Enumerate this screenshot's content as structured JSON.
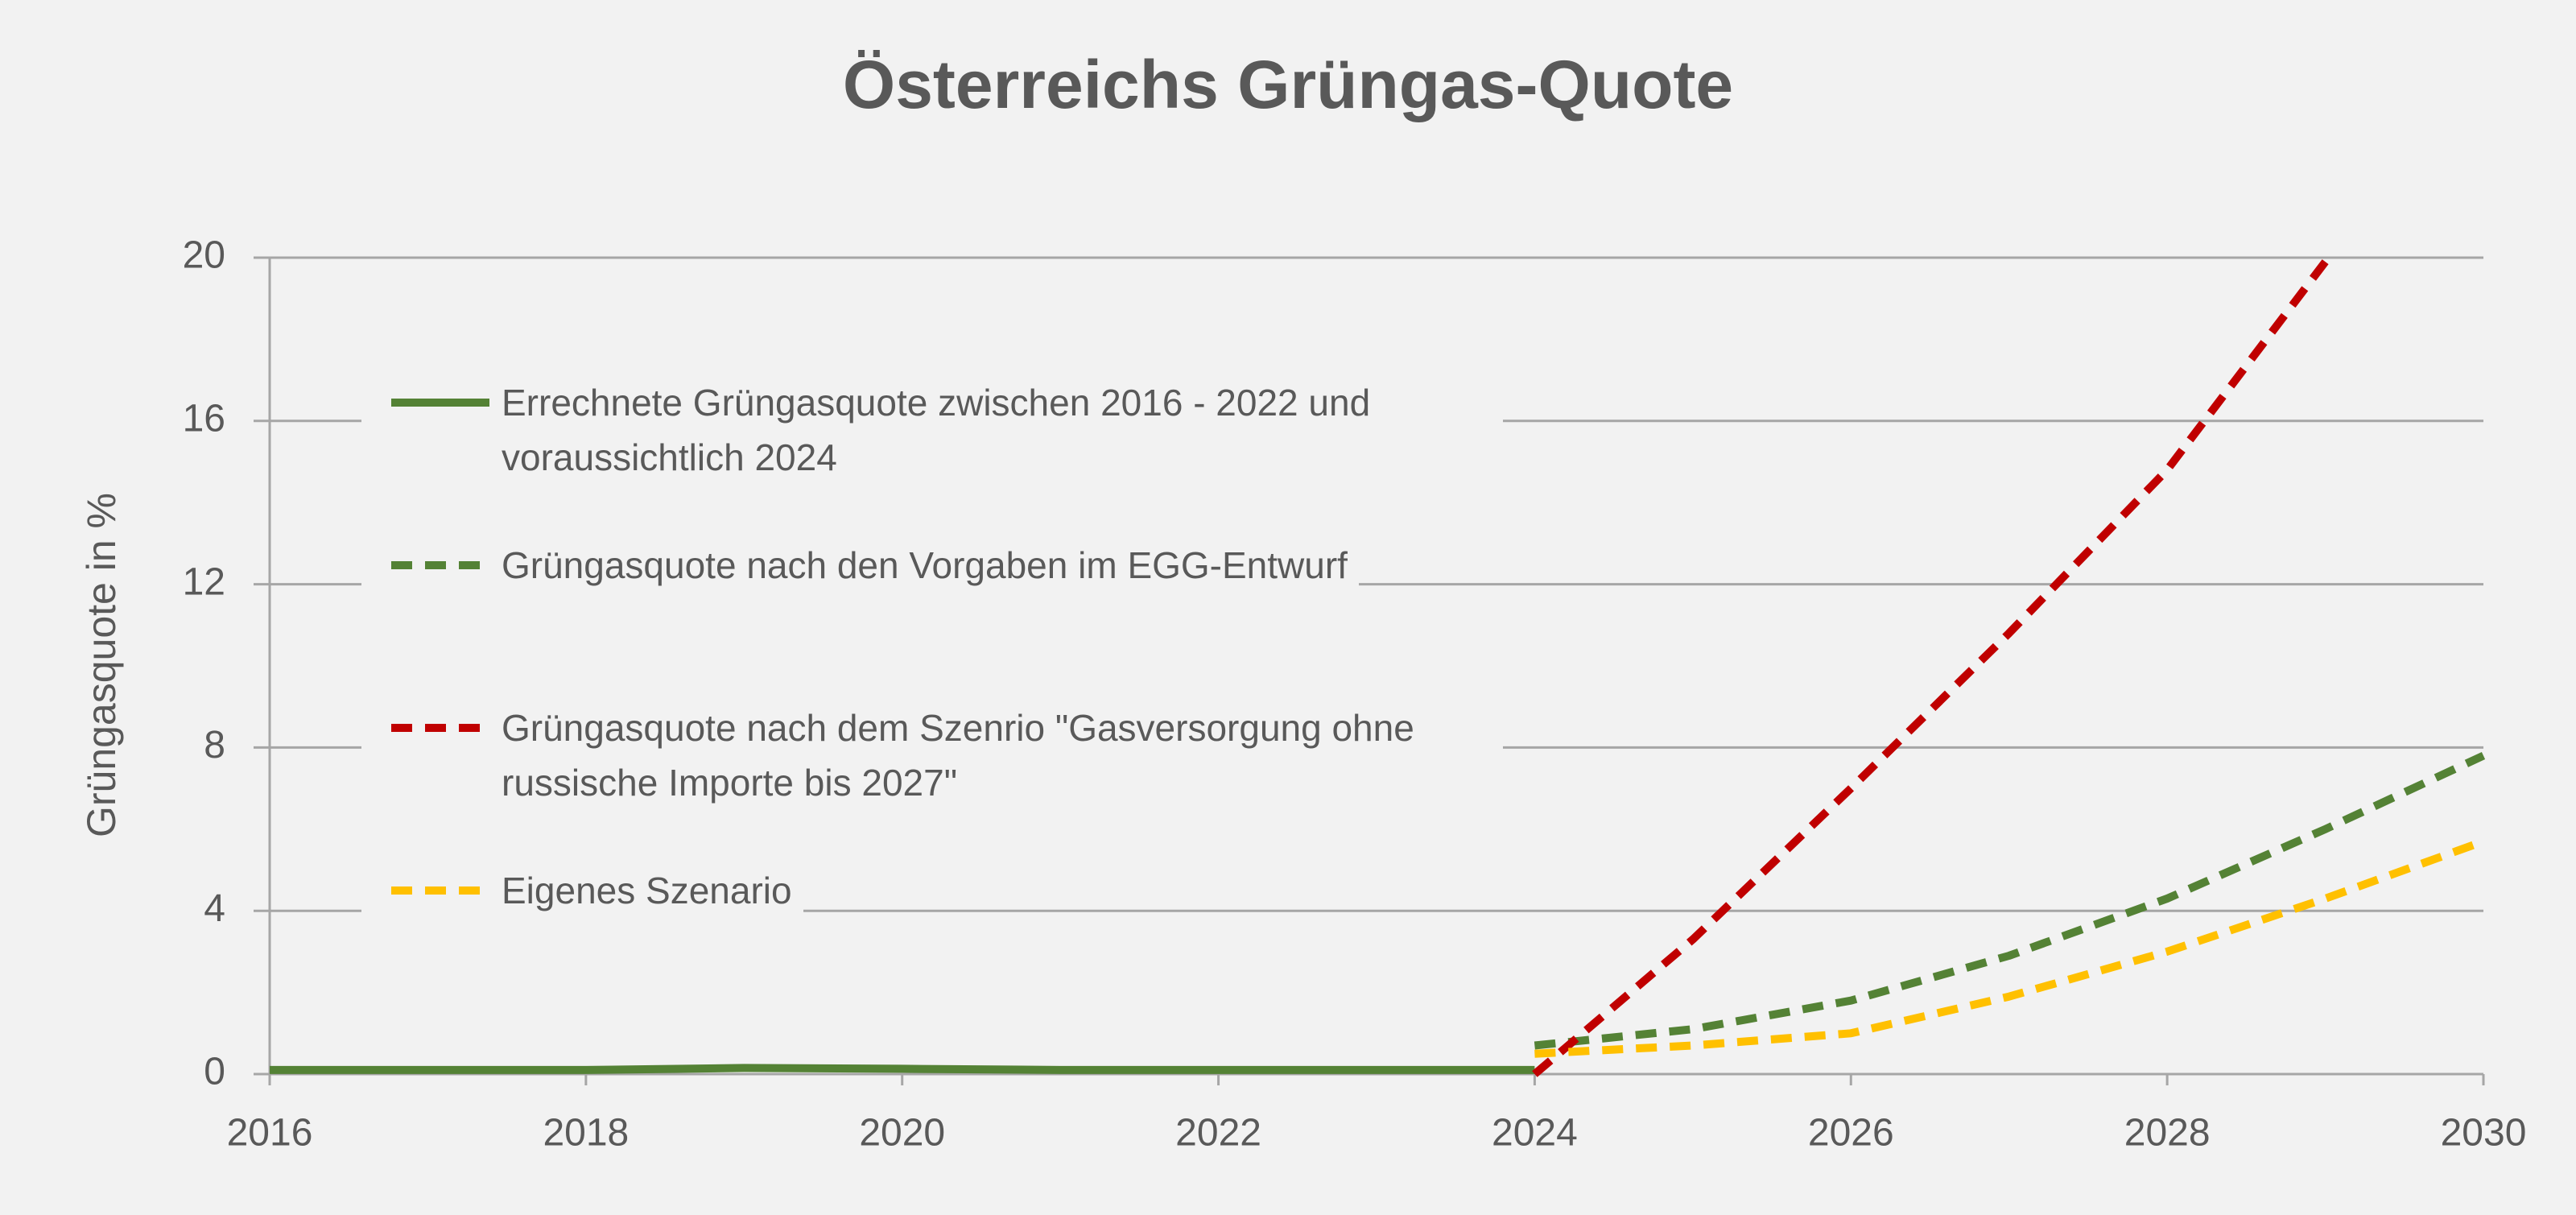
{
  "chart_data": {
    "type": "line",
    "title": "Österreichs Grüngas-Quote",
    "y_label": "Grüngasquote in %",
    "x": [
      2016,
      2017,
      2018,
      2019,
      2020,
      2021,
      2022,
      2023,
      2024,
      2025,
      2026,
      2027,
      2028,
      2029,
      2030
    ],
    "xlim": [
      2016,
      2030
    ],
    "xticks": [
      2016,
      2018,
      2020,
      2022,
      2024,
      2026,
      2028,
      2030
    ],
    "ylim": [
      0,
      20
    ],
    "yticks": [
      0,
      4,
      8,
      12,
      16,
      20
    ],
    "grid": true,
    "series": [
      {
        "name": "Errechnete Grüngasquote zwischen 2016 - 2022 und voraussichtlich 2024",
        "color": "#548235",
        "dashed": false,
        "values": [
          0.1,
          0.1,
          0.1,
          0.15,
          0.13,
          0.1,
          0.1,
          0.1,
          0.1,
          null,
          null,
          null,
          null,
          null,
          null
        ]
      },
      {
        "name": "Grüngasquote nach den Vorgaben im EGG-Entwurf",
        "color": "#548235",
        "dashed": true,
        "values": [
          null,
          null,
          null,
          null,
          null,
          null,
          null,
          null,
          0.7,
          1.1,
          1.8,
          2.9,
          4.3,
          6.0,
          7.8
        ]
      },
      {
        "name": "Grüngasquote nach dem Szenrio \"Gasversorgung ohne russische Importe bis 2027\"",
        "color": "#c00000",
        "dashed": true,
        "values": [
          null,
          null,
          null,
          null,
          null,
          null,
          null,
          null,
          0,
          3.3,
          7.0,
          10.8,
          14.8,
          19.9,
          null
        ]
      },
      {
        "name": "Eigenes Szenario",
        "color": "#ffc000",
        "dashed": true,
        "values": [
          null,
          null,
          null,
          null,
          null,
          null,
          null,
          null,
          0.5,
          0.7,
          1.0,
          1.9,
          3.0,
          4.3,
          5.7
        ]
      }
    ]
  }
}
